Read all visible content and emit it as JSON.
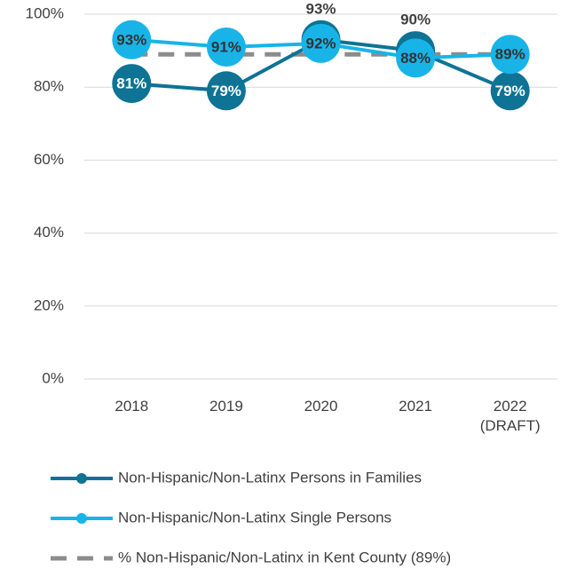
{
  "chart_data": {
    "type": "line",
    "categories": [
      "2018",
      "2019",
      "2020",
      "2021",
      "2022 (DRAFT)"
    ],
    "series": [
      {
        "name": "Non-Hispanic/Non-Latinx Persons in Families",
        "color": "#0e7394",
        "marker": true,
        "values": [
          81,
          79,
          93,
          90,
          79
        ],
        "value_labels": [
          "81%",
          "79%",
          "93%",
          "90%",
          "79%"
        ]
      },
      {
        "name": "Non-Hispanic/Non-Latinx Single Persons",
        "color": "#18b4e8",
        "marker": true,
        "values": [
          93,
          91,
          92,
          88,
          89
        ],
        "value_labels": [
          "93%",
          "91%",
          "92%",
          "88%",
          "89%"
        ]
      },
      {
        "name": "% Non-Hispanic/Non-Latinx in Kent County (89%)",
        "color": "#8c8c8c",
        "dashed": true,
        "values": [
          89,
          89,
          89,
          89,
          89
        ]
      }
    ],
    "ylim": [
      0,
      100
    ],
    "yticks": [
      {
        "value": 0,
        "label": "0%"
      },
      {
        "value": 20,
        "label": "20%"
      },
      {
        "value": 40,
        "label": "40%"
      },
      {
        "value": 60,
        "label": "60%"
      },
      {
        "value": 80,
        "label": "80%"
      },
      {
        "value": 100,
        "label": "100%"
      }
    ],
    "grid": true
  }
}
